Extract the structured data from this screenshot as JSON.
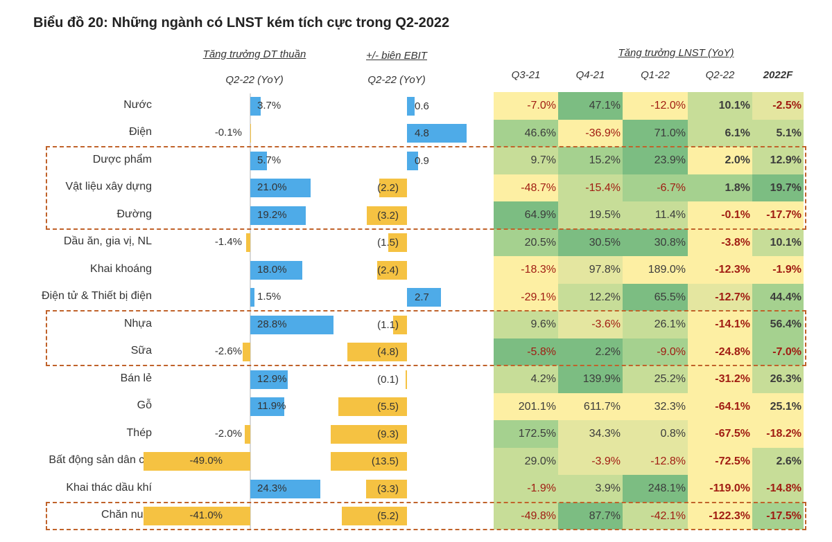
{
  "chart_data": {
    "type": "table",
    "title": "Biểu đồ 20: Những ngành có LNST kém tích cực trong Q2-2022",
    "revenue_header": "Tăng trưởng DT thuần",
    "revenue_sub": "Q2-22 (YoY)",
    "ebit_header": "+/- biên EBIT",
    "ebit_sub": "Q2-22 (YoY)",
    "profit_header": "Tăng trưởng LNST (YoY)",
    "profit_columns": [
      "Q3-21",
      "Q4-21",
      "Q1-22",
      "Q2-22",
      "2022F"
    ],
    "colors": {
      "positive_bar": "#4eabe8",
      "negative_bar": "#f5c242",
      "negative_text": "#a01c12",
      "highlight_box": "#c0622a",
      "heat": [
        "#fdefa3",
        "#e4e6a0",
        "#c7dd98",
        "#a5d18f",
        "#7cbd82"
      ]
    },
    "rows": [
      {
        "industry": "Nước",
        "revenue": 3.7,
        "revenue_label": "3.7%",
        "ebit": 0.6,
        "ebit_label": "0.6",
        "profit": [
          "-7.0%",
          "47.1%",
          "-12.0%",
          "10.1%",
          "-2.5%"
        ],
        "heat": [
          0,
          4,
          0,
          2,
          1
        ]
      },
      {
        "industry": "Điện",
        "revenue": -0.1,
        "revenue_label": "-0.1%",
        "ebit": 4.8,
        "ebit_label": "4.8",
        "profit": [
          "46.6%",
          "-36.9%",
          "71.0%",
          "6.1%",
          "5.1%"
        ],
        "heat": [
          3,
          0,
          4,
          2,
          2
        ]
      },
      {
        "industry": "Dược phẩm",
        "revenue": 5.7,
        "revenue_label": "5.7%",
        "ebit": 0.9,
        "ebit_label": "0.9",
        "profit": [
          "9.7%",
          "15.2%",
          "23.9%",
          "2.0%",
          "12.9%"
        ],
        "heat": [
          2,
          3,
          4,
          0,
          2
        ]
      },
      {
        "industry": "Vật liệu xây dựng",
        "revenue": 21.0,
        "revenue_label": "21.0%",
        "ebit": -2.2,
        "ebit_label": "(2.2)",
        "profit": [
          "-48.7%",
          "-15.4%",
          "-6.7%",
          "1.8%",
          "19.7%"
        ],
        "heat": [
          0,
          2,
          3,
          3,
          4
        ]
      },
      {
        "industry": "Đường",
        "revenue": 19.2,
        "revenue_label": "19.2%",
        "ebit": -3.2,
        "ebit_label": "(3.2)",
        "profit": [
          "64.9%",
          "19.5%",
          "11.4%",
          "-0.1%",
          "-17.7%"
        ],
        "heat": [
          4,
          2,
          2,
          0,
          0
        ]
      },
      {
        "industry": "Dầu ăn, gia vị, NL",
        "revenue": -1.4,
        "revenue_label": "-1.4%",
        "ebit": -1.5,
        "ebit_label": "(1.5)",
        "profit": [
          "20.5%",
          "30.5%",
          "30.8%",
          "-3.8%",
          "10.1%"
        ],
        "heat": [
          3,
          4,
          4,
          0,
          2
        ]
      },
      {
        "industry": "Khai khoáng",
        "revenue": 18.0,
        "revenue_label": "18.0%",
        "ebit": -2.4,
        "ebit_label": "(2.4)",
        "profit": [
          "-18.3%",
          "97.8%",
          "189.0%",
          "-12.3%",
          "-1.9%"
        ],
        "heat": [
          0,
          1,
          0,
          0,
          0
        ]
      },
      {
        "industry": "Điện tử & Thiết bị điện",
        "revenue": 1.5,
        "revenue_label": "1.5%",
        "ebit": 2.7,
        "ebit_label": "2.7",
        "profit": [
          "-29.1%",
          "12.2%",
          "65.5%",
          "-12.7%",
          "44.4%"
        ],
        "heat": [
          0,
          2,
          4,
          1,
          3
        ]
      },
      {
        "industry": "Nhựa",
        "revenue": 28.8,
        "revenue_label": "28.8%",
        "ebit": -1.1,
        "ebit_label": "(1.1)",
        "profit": [
          "9.6%",
          "-3.6%",
          "26.1%",
          "-14.1%",
          "56.4%"
        ],
        "heat": [
          2,
          1,
          2,
          0,
          3
        ]
      },
      {
        "industry": "Sữa",
        "revenue": -2.6,
        "revenue_label": "-2.6%",
        "ebit": -4.8,
        "ebit_label": "(4.8)",
        "profit": [
          "-5.8%",
          "2.2%",
          "-9.0%",
          "-24.8%",
          "-7.0%"
        ],
        "heat": [
          4,
          4,
          3,
          0,
          3
        ]
      },
      {
        "industry": "Bán lẻ",
        "revenue": 12.9,
        "revenue_label": "12.9%",
        "ebit": -0.1,
        "ebit_label": "(0.1)",
        "profit": [
          "4.2%",
          "139.9%",
          "25.2%",
          "-31.2%",
          "26.3%"
        ],
        "heat": [
          2,
          4,
          2,
          0,
          2
        ]
      },
      {
        "industry": "Gỗ",
        "revenue": 11.9,
        "revenue_label": "11.9%",
        "ebit": -5.5,
        "ebit_label": "(5.5)",
        "profit": [
          "201.1%",
          "611.7%",
          "32.3%",
          "-64.1%",
          "25.1%"
        ],
        "heat": [
          0,
          0,
          0,
          0,
          0
        ]
      },
      {
        "industry": "Thép",
        "revenue": -2.0,
        "revenue_label": "-2.0%",
        "ebit": -9.3,
        "ebit_label": "(9.3)",
        "profit": [
          "172.5%",
          "34.3%",
          "0.8%",
          "-67.5%",
          "-18.2%"
        ],
        "heat": [
          3,
          1,
          1,
          0,
          0
        ]
      },
      {
        "industry": "Bất động sản dân cư",
        "revenue": -49.0,
        "revenue_label": "-49.0%",
        "ebit": -13.5,
        "ebit_label": "(13.5)",
        "profit": [
          "29.0%",
          "-3.9%",
          "-12.8%",
          "-72.5%",
          "2.6%"
        ],
        "heat": [
          2,
          1,
          1,
          0,
          2
        ]
      },
      {
        "industry": "Khai thác dầu khí",
        "revenue": 24.3,
        "revenue_label": "24.3%",
        "ebit": -3.3,
        "ebit_label": "(3.3)",
        "profit": [
          "-1.9%",
          "3.9%",
          "248.1%",
          "-119.0%",
          "-14.8%"
        ],
        "heat": [
          2,
          2,
          4,
          0,
          2
        ]
      },
      {
        "industry": "Chăn nuôi",
        "revenue": -41.0,
        "revenue_label": "-41.0%",
        "ebit": -5.2,
        "ebit_label": "(5.2)",
        "profit": [
          "-49.8%",
          "87.7%",
          "-42.1%",
          "-122.3%",
          "-17.5%"
        ],
        "heat": [
          2,
          4,
          2,
          0,
          3
        ]
      }
    ],
    "highlighted_groups": [
      [
        "Dược phẩm",
        "Vật liệu xây dựng",
        "Đường"
      ],
      [
        "Nhựa",
        "Sữa"
      ],
      [
        "Chăn nuôi"
      ]
    ]
  }
}
